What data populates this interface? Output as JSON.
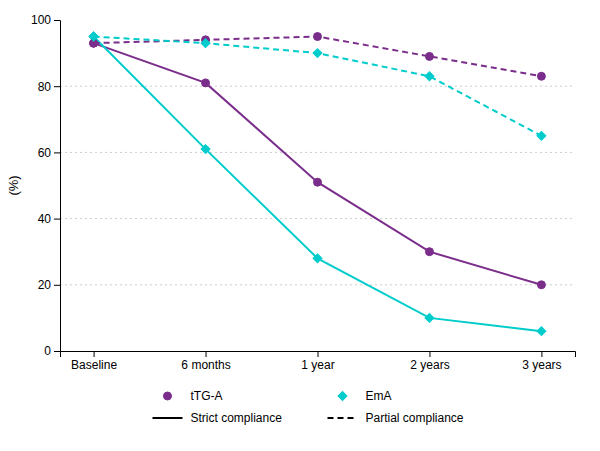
{
  "chart_data": {
    "type": "line",
    "y_label": "(%)",
    "categories": [
      "Baseline",
      "6 months",
      "1 year",
      "2 years",
      "3 years"
    ],
    "series": [
      {
        "color": "#7B2D8B",
        "marker": "circle",
        "line_style": "solid",
        "values": [
          93,
          81,
          51,
          30,
          20
        ]
      },
      {
        "color": "#00CCCC",
        "marker": "diamond",
        "line_style": "solid",
        "values": [
          95,
          61,
          28,
          10,
          6
        ]
      },
      {
        "color": "#7B2D8B",
        "marker": "circle",
        "line_style": "dashed",
        "values": [
          93,
          94,
          95,
          89,
          83
        ]
      },
      {
        "color": "#00CCCC",
        "marker": "diamond",
        "line_style": "dashed",
        "values": [
          95,
          93,
          90,
          83,
          65
        ]
      }
    ],
    "ylim": [
      0,
      100
    ],
    "yticks": [
      0,
      20,
      40,
      60,
      80,
      100
    ],
    "grid": true,
    "legend": "bottom",
    "legend_entries": [
      {
        "label": "tTG-A",
        "color": "#7B2D8B",
        "marker": "circle"
      },
      {
        "label": "Strict compliance",
        "color": "#000000",
        "line_style": "solid"
      },
      {
        "label": "EmA",
        "color": "#00CCCC",
        "marker": "diamond"
      },
      {
        "label": "Partial compliance",
        "color": "#000000",
        "line_style": "dashed"
      }
    ]
  }
}
